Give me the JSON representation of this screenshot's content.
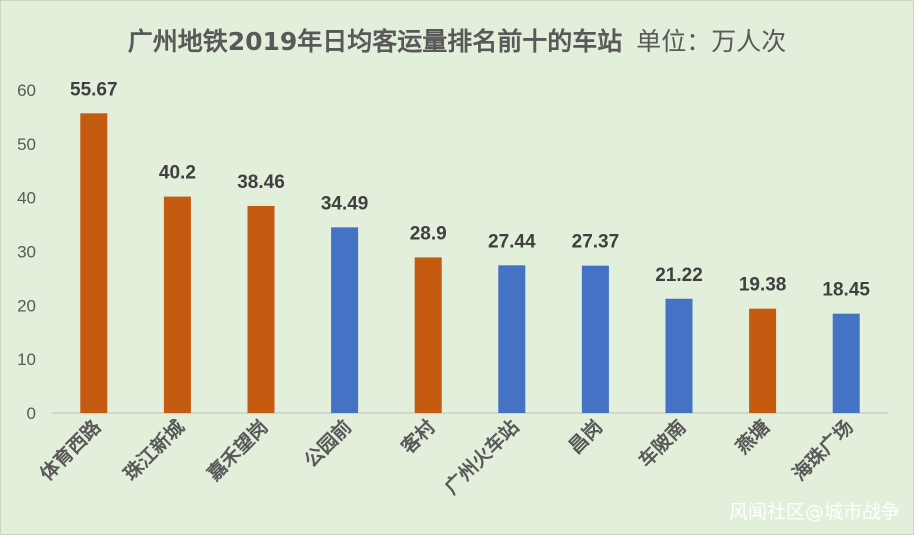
{
  "chart_data": {
    "type": "bar",
    "title": "广州地铁2019年日均客运量排名前十的车站",
    "subtitle": "单位：万人次",
    "categories": [
      "体育西路",
      "珠江新城",
      "嘉禾望岗",
      "公园前",
      "客村",
      "广州火车站",
      "昌岗",
      "车陂南",
      "燕塘",
      "海珠广场"
    ],
    "values": [
      55.67,
      40.2,
      38.46,
      34.49,
      28.9,
      27.44,
      27.37,
      21.22,
      19.38,
      18.45
    ],
    "value_labels": [
      "55.67",
      "40.2",
      "38.46",
      "34.49",
      "28.9",
      "27.44",
      "27.37",
      "21.22",
      "19.38",
      "18.45"
    ],
    "bar_colors": [
      "#c55a11",
      "#c55a11",
      "#c55a11",
      "#4472c4",
      "#c55a11",
      "#4472c4",
      "#4472c4",
      "#4472c4",
      "#c55a11",
      "#4472c4"
    ],
    "ylim": [
      0,
      60
    ],
    "yticks": [
      "0",
      "10",
      "20",
      "30",
      "40",
      "50",
      "60"
    ],
    "grid": false,
    "xlabel": "",
    "ylabel": ""
  },
  "colors": {
    "background": "#e2efda",
    "orange_bar": "#c55a11",
    "blue_bar": "#4472c4",
    "text": "#595959"
  },
  "watermark": "风闻社区@城市战争"
}
